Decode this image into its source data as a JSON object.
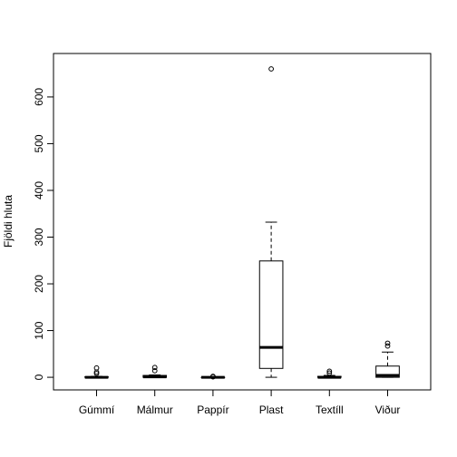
{
  "chart_data": {
    "type": "boxplot",
    "title": "",
    "xlabel": "",
    "ylabel": "Fjöldi hluta",
    "ylim": [
      -27,
      693
    ],
    "yticks": [
      0,
      100,
      200,
      300,
      400,
      500,
      600
    ],
    "grid": false,
    "categories": [
      "Gúmmí",
      "Málmur",
      "Pappír",
      "Plast",
      "Textíll",
      "Viður"
    ],
    "boxes": [
      {
        "name": "Gúmmí",
        "whisker_low": 0,
        "q1": 0,
        "median": 0,
        "q3": 1,
        "whisker_high": 2,
        "outliers": [
          8,
          11,
          20
        ]
      },
      {
        "name": "Málmur",
        "whisker_low": 0,
        "q1": 0,
        "median": 1,
        "q3": 4,
        "whisker_high": 5,
        "outliers": [
          14,
          21
        ]
      },
      {
        "name": "Pappír",
        "whisker_low": 0,
        "q1": 0,
        "median": 0,
        "q3": 0,
        "whisker_high": 0,
        "outliers": [
          1,
          2
        ]
      },
      {
        "name": "Plast",
        "whisker_low": 0,
        "q1": 19,
        "median": 64,
        "q3": 249,
        "whisker_high": 332,
        "outliers": [
          660
        ]
      },
      {
        "name": "Textíll",
        "whisker_low": 0,
        "q1": 0,
        "median": 0,
        "q3": 2,
        "whisker_high": 4,
        "outliers": [
          9,
          13
        ]
      },
      {
        "name": "Viður",
        "whisker_low": 0,
        "q1": 0,
        "median": 4,
        "q3": 24,
        "whisker_high": 54,
        "outliers": [
          67,
          73
        ]
      }
    ]
  }
}
